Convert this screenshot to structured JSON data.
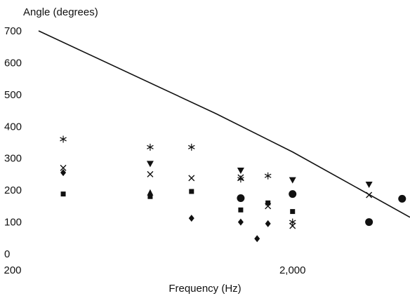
{
  "chart_data": {
    "type": "scatter",
    "ylabel": "Angle (degrees)",
    "xlabel": "Frequency (Hz)",
    "x_scale": "log",
    "xlim": [
      200,
      5800
    ],
    "ylim": [
      0,
      700
    ],
    "grid": false,
    "x_ticks": [
      {
        "value": 200,
        "label": "200"
      },
      {
        "value": 2000,
        "label": "2,000"
      }
    ],
    "y_ticks": [
      {
        "value": 0,
        "label": "0"
      },
      {
        "value": 100,
        "label": "100"
      },
      {
        "value": 200,
        "label": "200"
      },
      {
        "value": 300,
        "label": "300"
      },
      {
        "value": 400,
        "label": "400"
      },
      {
        "value": 500,
        "label": "500"
      },
      {
        "value": 600,
        "label": "600"
      },
      {
        "value": 700,
        "label": "700"
      }
    ],
    "line": {
      "x": [
        200,
        1000,
        2000,
        5800
      ],
      "y": [
        700,
        440,
        320,
        115
      ]
    },
    "series": [
      {
        "marker": "circle",
        "x": [
          1250,
          2000,
          4000,
          5400
        ],
        "y": [
          175,
          188,
          100,
          173
        ]
      },
      {
        "marker": "square",
        "x": [
          250,
          550,
          800,
          1250,
          1600,
          2000
        ],
        "y": [
          188,
          180,
          196,
          138,
          160,
          133
        ]
      },
      {
        "marker": "triangle-up",
        "x": [
          550
        ],
        "y": [
          192
        ]
      },
      {
        "marker": "triangle-down",
        "x": [
          550,
          1250,
          2000,
          4000
        ],
        "y": [
          283,
          262,
          232,
          218
        ]
      },
      {
        "marker": "diamond",
        "x": [
          250,
          800,
          1250,
          1450,
          1600
        ],
        "y": [
          255,
          112,
          100,
          48,
          95
        ]
      },
      {
        "marker": "cross",
        "x": [
          250,
          550,
          800,
          1250,
          1600,
          2000,
          4000
        ],
        "y": [
          270,
          250,
          238,
          240,
          150,
          88,
          185
        ]
      },
      {
        "marker": "star",
        "x": [
          250,
          550,
          800,
          1250,
          1600,
          2000
        ],
        "y": [
          360,
          335,
          335,
          235,
          245,
          100
        ]
      }
    ]
  }
}
